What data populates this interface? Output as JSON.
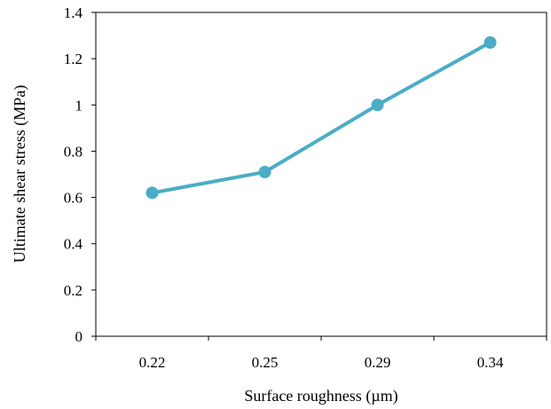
{
  "chart_data": {
    "type": "line",
    "title": "",
    "xlabel": "Surface roughness (µm)",
    "ylabel": "Ultimate shear stress (MPa)",
    "categories": [
      "0.22",
      "0.25",
      "0.29",
      "0.34"
    ],
    "series": [
      {
        "values": [
          0.62,
          0.71,
          1.0,
          1.27
        ],
        "color": "#4bacc6"
      }
    ],
    "ylim": [
      0,
      1.4
    ],
    "yticks": [
      "0",
      "0.2",
      "0.4",
      "0.6",
      "0.8",
      "1",
      "1.2",
      "1.4"
    ],
    "grid": false,
    "legend": "none"
  }
}
